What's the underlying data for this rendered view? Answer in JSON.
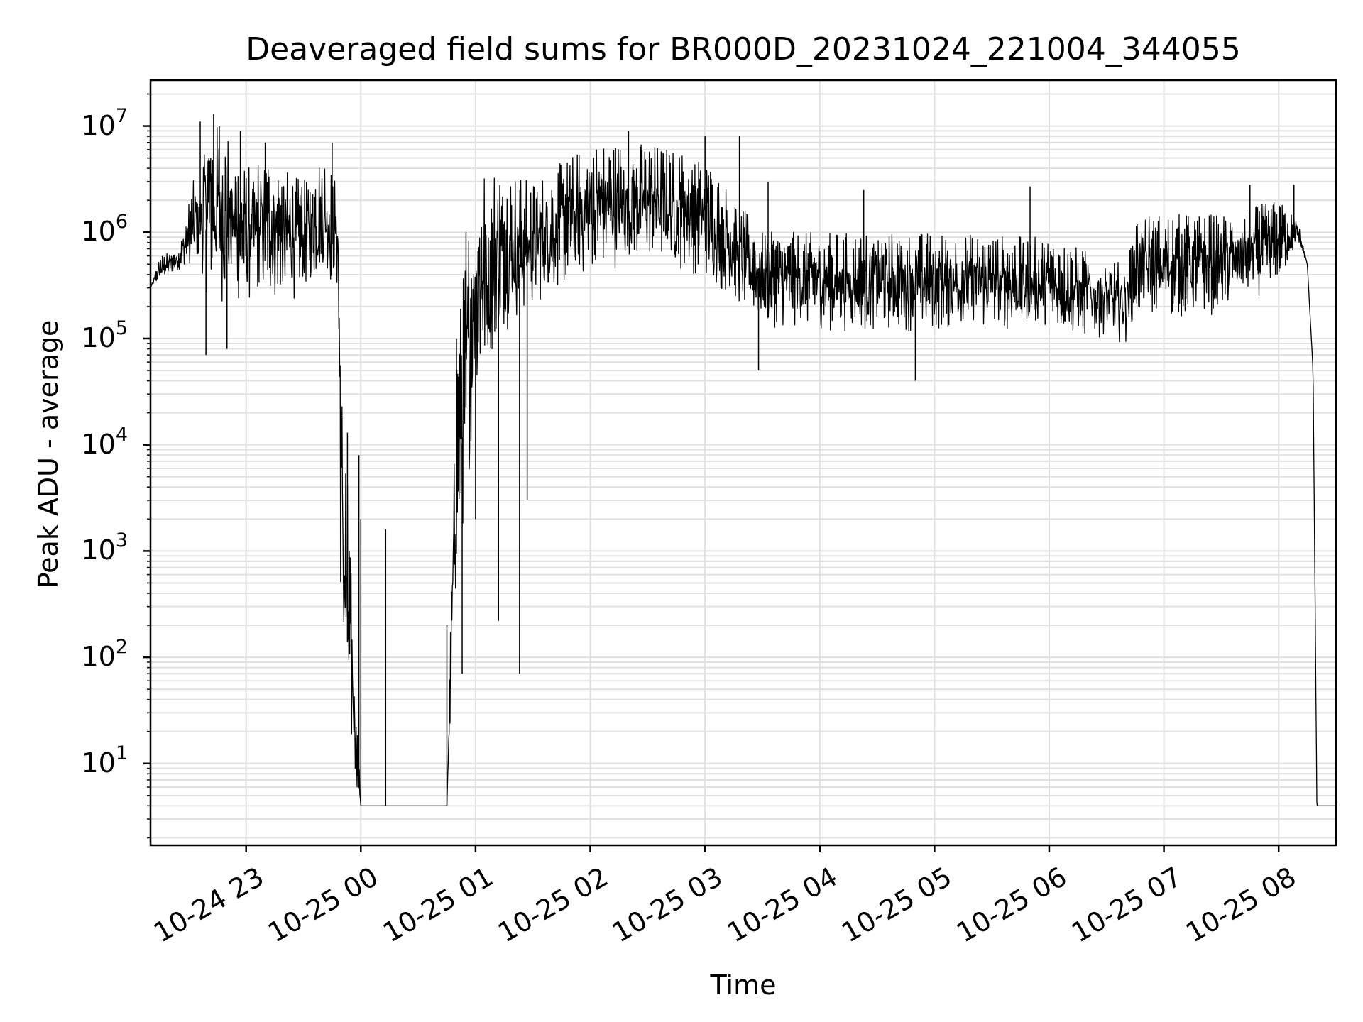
{
  "chart_data": {
    "type": "line",
    "title": "Deaveraged field sums for BR000D_20231024_221004_344055",
    "xlabel": "Time",
    "ylabel": "Peak ADU - average",
    "yscale": "log",
    "ylim": [
      1.7,
      27000000
    ],
    "xlim": [
      "10-24 22:10",
      "10-25 08:30"
    ],
    "grid": true,
    "line_color": "#000000",
    "grid_color": "#e0e0e0",
    "x_ticks": [
      "10-24 23",
      "10-25 00",
      "10-25 01",
      "10-25 02",
      "10-25 03",
      "10-25 04",
      "10-25 05",
      "10-25 06",
      "10-25 07",
      "10-25 08"
    ],
    "y_ticks": [
      {
        "base": "10",
        "exp": "1"
      },
      {
        "base": "10",
        "exp": "2"
      },
      {
        "base": "10",
        "exp": "3"
      },
      {
        "base": "10",
        "exp": "4"
      },
      {
        "base": "10",
        "exp": "5"
      },
      {
        "base": "10",
        "exp": "6"
      },
      {
        "base": "10",
        "exp": "7"
      }
    ],
    "series": [
      {
        "envelope": [
          {
            "x": "10-24 22:10",
            "high": 300000,
            "low": 300000
          },
          {
            "x": "10-24 22:15",
            "high": 600000,
            "low": 300000
          },
          {
            "x": "10-24 22:25",
            "high": 700000,
            "low": 400000
          },
          {
            "x": "10-24 22:30",
            "high": 2000000,
            "low": 300000
          },
          {
            "x": "10-24 22:40",
            "high": 12000000,
            "low": 100000
          },
          {
            "x": "10-24 22:50",
            "high": 9000000,
            "low": 80000
          },
          {
            "x": "10-24 23:00",
            "high": 4000000,
            "low": 100000
          },
          {
            "x": "10-24 23:10",
            "high": 6000000,
            "low": 100000
          },
          {
            "x": "10-24 23:20",
            "high": 4000000,
            "low": 100000
          },
          {
            "x": "10-24 23:30",
            "high": 3000000,
            "low": 150000
          },
          {
            "x": "10-24 23:40",
            "high": 6000000,
            "low": 200000
          },
          {
            "x": "10-24 23:48",
            "high": 3000000,
            "low": 130000
          },
          {
            "x": "10-24 23:50",
            "high": 100000,
            "low": 4
          },
          {
            "x": "10-25 00:00",
            "high": 4,
            "low": 4
          },
          {
            "x": "10-25 00:45",
            "high": 4,
            "low": 4
          },
          {
            "x": "10-25 00:50",
            "high": 100000,
            "low": 100
          },
          {
            "x": "10-25 01:00",
            "high": 5000000,
            "low": 5000
          },
          {
            "x": "10-25 01:15",
            "high": 4000000,
            "low": 50000
          },
          {
            "x": "10-25 01:30",
            "high": 3000000,
            "low": 100000
          },
          {
            "x": "10-25 02:00",
            "high": 7000000,
            "low": 200000
          },
          {
            "x": "10-25 02:30",
            "high": 7000000,
            "low": 300000
          },
          {
            "x": "10-25 03:00",
            "high": 5000000,
            "low": 200000
          },
          {
            "x": "10-25 03:30",
            "high": 1000000,
            "low": 80000
          },
          {
            "x": "10-25 04:00",
            "high": 1000000,
            "low": 70000
          },
          {
            "x": "10-25 05:00",
            "high": 1000000,
            "low": 70000
          },
          {
            "x": "10-25 06:00",
            "high": 900000,
            "low": 70000
          },
          {
            "x": "10-25 06:40",
            "high": 500000,
            "low": 60000
          },
          {
            "x": "10-25 06:45",
            "high": 1500000,
            "low": 80000
          },
          {
            "x": "10-25 07:30",
            "high": 1500000,
            "low": 100000
          },
          {
            "x": "10-25 08:00",
            "high": 2000000,
            "low": 200000
          },
          {
            "x": "10-25 08:10",
            "high": 1300000,
            "low": 700000
          },
          {
            "x": "10-25 08:15",
            "high": 500000,
            "low": 500000
          },
          {
            "x": "10-25 08:18",
            "high": 50000,
            "low": 50000
          },
          {
            "x": "10-25 08:20",
            "high": 4,
            "low": 4
          },
          {
            "x": "10-25 08:30",
            "high": 4,
            "low": 4
          }
        ],
        "spikes": [
          {
            "x": "10-24 22:36",
            "y": 11000000
          },
          {
            "x": "10-24 22:43",
            "y": 13000000
          },
          {
            "x": "10-24 22:46",
            "y": 10000000
          },
          {
            "x": "10-24 22:57",
            "y": 9000000
          },
          {
            "x": "10-24 23:10",
            "y": 7000000
          },
          {
            "x": "10-24 23:45",
            "y": 7000000
          },
          {
            "x": "10-24 22:39",
            "y": 70000
          },
          {
            "x": "10-24 22:50",
            "y": 80000
          },
          {
            "x": "10-24 23:53",
            "y": 13000
          },
          {
            "x": "10-24 23:59",
            "y": 8000
          },
          {
            "x": "10-25 00:00",
            "y": 2000
          },
          {
            "x": "10-25 00:13",
            "y": 1600
          },
          {
            "x": "10-25 00:45",
            "y": 200
          },
          {
            "x": "10-25 00:50",
            "y": 100000
          },
          {
            "x": "10-25 00:53",
            "y": 70
          },
          {
            "x": "10-25 00:55",
            "y": 1000000
          },
          {
            "x": "10-25 01:00",
            "y": 2000
          },
          {
            "x": "10-25 01:12",
            "y": 220
          },
          {
            "x": "10-25 01:23",
            "y": 70
          },
          {
            "x": "10-25 01:27",
            "y": 3000
          },
          {
            "x": "10-25 02:20",
            "y": 9000000
          },
          {
            "x": "10-25 03:00",
            "y": 8000000
          },
          {
            "x": "10-25 03:18",
            "y": 8000000
          },
          {
            "x": "10-25 03:33",
            "y": 3000000
          },
          {
            "x": "10-25 04:23",
            "y": 2500000
          },
          {
            "x": "10-25 04:50",
            "y": 40000
          },
          {
            "x": "10-25 05:50",
            "y": 2700000
          },
          {
            "x": "10-25 07:45",
            "y": 2800000
          },
          {
            "x": "10-25 08:08",
            "y": 2800000
          },
          {
            "x": "10-25 03:28",
            "y": 50000
          }
        ]
      }
    ]
  }
}
